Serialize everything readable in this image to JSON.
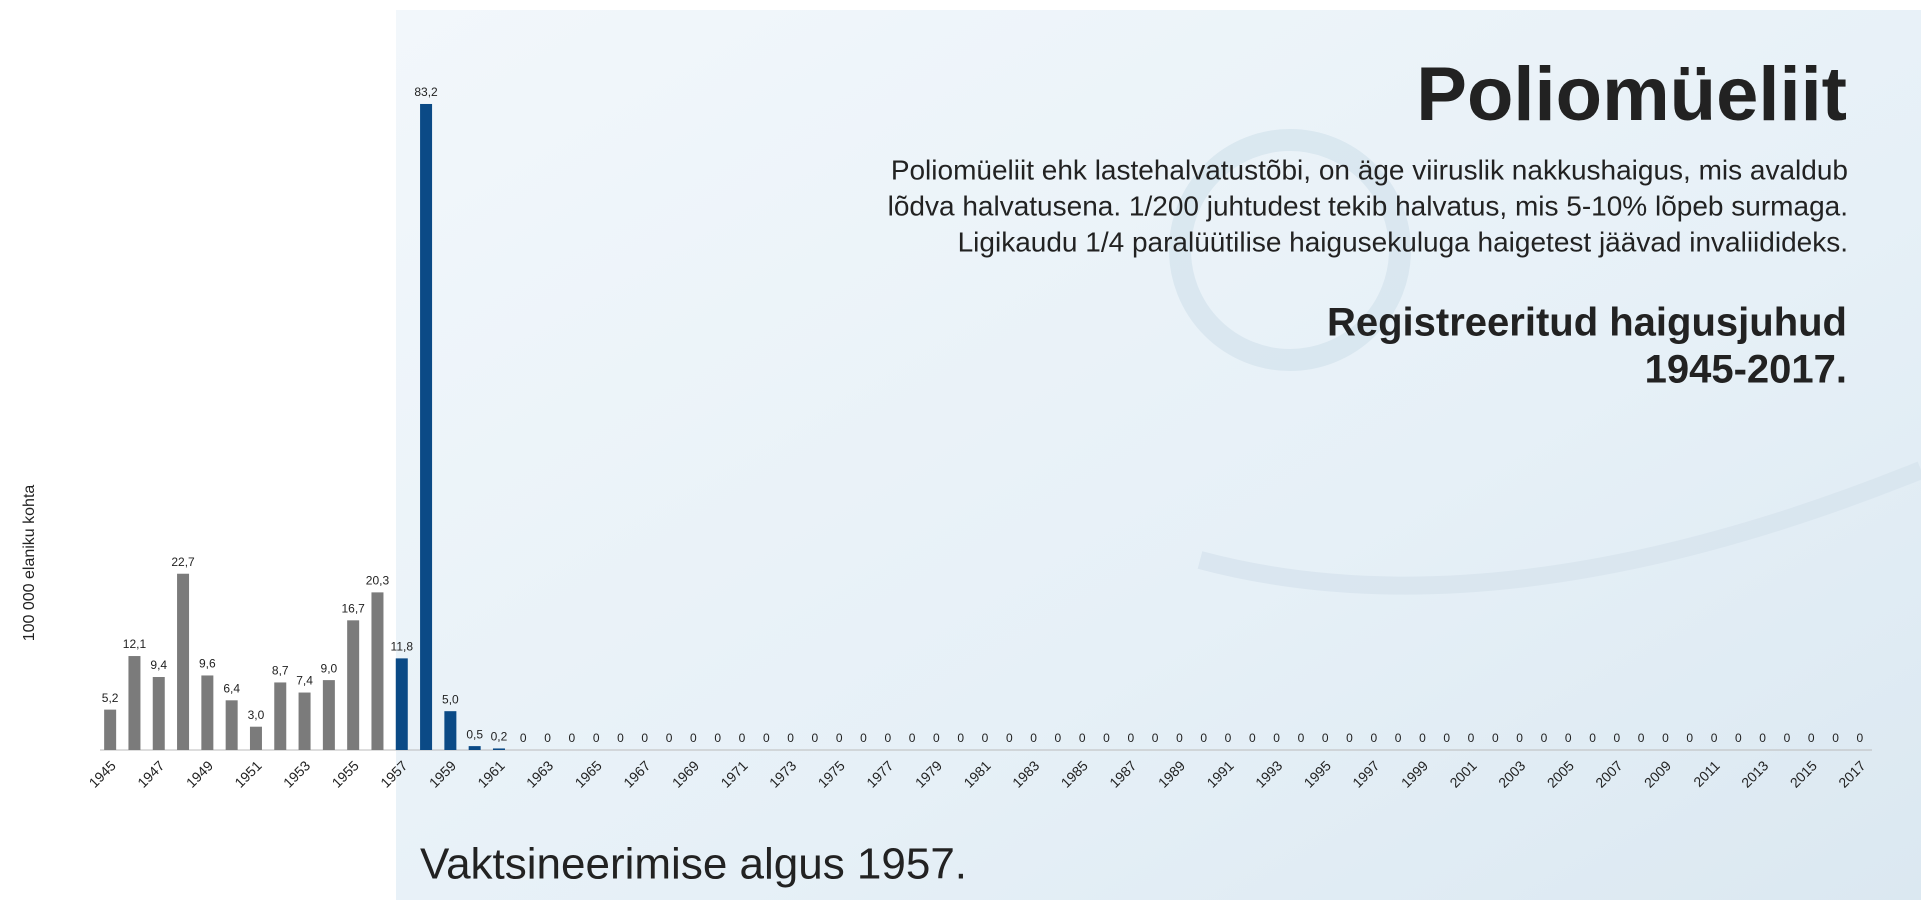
{
  "chart_data": {
    "type": "bar",
    "title": "Poliomüeliit",
    "description": [
      "Poliomüeliit ehk lastehalvatustõbi, on äge viiruslik nakkushaigus, mis avaldub",
      "lõdva halvatusena. 1/200 juhtudest tekib halvatus, mis 5-10% lõpeb surmaga.",
      "Ligikaudu 1/4 paralüütilise haigusekuluga haigetest jäävad invaliidideks."
    ],
    "subtitle": [
      "Registreeritud haigusjuhud",
      "1945-2017."
    ],
    "ylabel": "100 000 elaniku kohta",
    "note": "Vaktsineerimise algus 1957.",
    "categories": [
      "1945",
      null,
      "1947",
      null,
      "1949",
      null,
      "1951",
      null,
      "1953",
      null,
      "1955",
      null,
      "1957",
      null,
      "1959",
      null,
      "1961",
      null,
      "1963",
      null,
      "1965",
      null,
      "1967",
      null,
      "1969",
      null,
      "1971",
      null,
      "1973",
      null,
      "1975",
      null,
      "1977",
      null,
      "1979",
      null,
      "1981",
      null,
      "1983",
      null,
      "1985",
      null,
      "1987",
      null,
      "1989",
      null,
      "1991",
      null,
      "1993",
      null,
      "1995",
      null,
      "1997",
      null,
      "1999",
      null,
      "2001",
      null,
      "2003",
      null,
      "2005",
      null,
      "2007",
      null,
      "2009",
      null,
      "2011",
      null,
      "2013",
      null,
      "2015",
      null,
      "2017"
    ],
    "values": [
      5.2,
      12.1,
      9.4,
      22.7,
      9.6,
      6.4,
      3.0,
      8.7,
      7.4,
      9.0,
      16.7,
      20.3,
      11.8,
      83.2,
      5.0,
      0.5,
      0.2,
      0,
      0,
      0,
      0,
      0,
      0,
      0,
      0,
      0,
      0,
      0,
      0,
      0,
      0,
      0,
      0,
      0,
      0,
      0,
      0,
      0,
      0,
      0,
      0,
      0,
      0,
      0,
      0,
      0,
      0,
      0,
      0,
      0,
      0,
      0,
      0,
      0,
      0,
      0,
      0,
      0,
      0,
      0,
      0,
      0,
      0,
      0,
      0,
      0,
      0,
      0,
      0,
      0,
      0,
      0,
      0
    ],
    "value_labels": [
      "5,2",
      "12,1",
      "9,4",
      "22,7",
      "9,6",
      "6,4",
      "3,0",
      "8,7",
      "7,4",
      "9,0",
      "16,7",
      "20,3",
      "11,8",
      "83,2",
      "5,0",
      "0,5",
      "0,2",
      "0",
      "0",
      "0",
      "0",
      "0",
      "0",
      "0",
      "0",
      "0",
      "0",
      "0",
      "0",
      "0",
      "0",
      "0",
      "0",
      "0",
      "0",
      "0",
      "0",
      "0",
      "0",
      "0",
      "0",
      "0",
      "0",
      "0",
      "0",
      "0",
      "0",
      "0",
      "0",
      "0",
      "0",
      "0",
      "0",
      "0",
      "0",
      "0",
      "0",
      "0",
      "0",
      "0",
      "0",
      "0",
      "0",
      "0",
      "0",
      "0",
      "0",
      "0",
      "0",
      "0",
      "0",
      "0",
      "0"
    ],
    "colors": [
      "#7b7b7b",
      "#7b7b7b",
      "#7b7b7b",
      "#7b7b7b",
      "#7b7b7b",
      "#7b7b7b",
      "#7b7b7b",
      "#7b7b7b",
      "#7b7b7b",
      "#7b7b7b",
      "#7b7b7b",
      "#7b7b7b",
      "#0b4a86",
      "#0b4a86",
      "#0b4a86",
      "#0b4a86",
      "#0b4a86",
      "#0b4a86",
      "#0b4a86",
      "#0b4a86",
      "#0b4a86",
      "#0b4a86",
      "#0b4a86",
      "#0b4a86",
      "#0b4a86",
      "#0b4a86",
      "#0b4a86",
      "#0b4a86",
      "#0b4a86",
      "#0b4a86",
      "#0b4a86",
      "#0b4a86",
      "#0b4a86",
      "#0b4a86",
      "#0b4a86",
      "#0b4a86",
      "#0b4a86",
      "#0b4a86",
      "#0b4a86",
      "#0b4a86",
      "#0b4a86",
      "#0b4a86",
      "#0b4a86",
      "#0b4a86",
      "#0b4a86",
      "#0b4a86",
      "#0b4a86",
      "#0b4a86",
      "#0b4a86",
      "#0b4a86",
      "#0b4a86",
      "#0b4a86",
      "#0b4a86",
      "#0b4a86",
      "#0b4a86",
      "#0b4a86",
      "#0b4a86",
      "#0b4a86",
      "#0b4a86",
      "#0b4a86",
      "#0b4a86",
      "#0b4a86",
      "#0b4a86",
      "#0b4a86",
      "#0b4a86",
      "#0b4a86",
      "#0b4a86",
      "#0b4a86",
      "#0b4a86",
      "#0b4a86",
      "#0b4a86",
      "#0b4a86",
      "#0b4a86"
    ],
    "ylim": [
      0,
      85
    ]
  }
}
